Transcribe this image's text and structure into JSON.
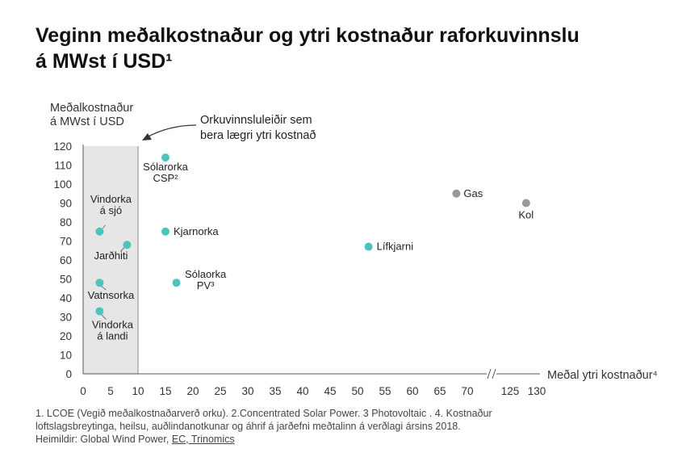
{
  "title": {
    "line1": "Veginn meðalkostnaður og ytri kostnaður raforkuvinnslu",
    "line2": "á MWst í USD¹"
  },
  "chart_data": {
    "type": "scatter",
    "ylabel": [
      "Meðalkostnaður",
      "á MWst í USD"
    ],
    "xlabel": "Meðal ytri kostnaður⁴",
    "ylim": [
      0,
      120
    ],
    "yticks": [
      0,
      10,
      20,
      30,
      40,
      50,
      60,
      70,
      80,
      90,
      100,
      110,
      120
    ],
    "xticks": [
      "0",
      "5",
      "10",
      "15",
      "20",
      "25",
      "30",
      "35",
      "40",
      "45",
      "50",
      "55",
      "60",
      "65",
      "70",
      "125",
      "130"
    ],
    "x_axis_break": "70–125",
    "grid": false,
    "shaded_region": {
      "x": [
        0,
        10
      ],
      "annotation": [
        "Orkuvinnsluleiðir sem",
        "bera lægri ytri kostnað"
      ]
    },
    "colors": {
      "teal": "#4dc3bd",
      "gray": "#999999",
      "shade": "#e6e6e6"
    },
    "points": [
      {
        "label": [
          "Sólarorka",
          "CSP²"
        ],
        "x": 15,
        "y": 114,
        "color": "teal"
      },
      {
        "label": [
          "Vindorka",
          "á sjó"
        ],
        "x": 3,
        "y": 75,
        "color": "teal"
      },
      {
        "label": [
          "Jarðhiti"
        ],
        "x": 8,
        "y": 68,
        "color": "teal"
      },
      {
        "label": [
          "Kjarnorka"
        ],
        "x": 15,
        "y": 75,
        "color": "teal"
      },
      {
        "label": [
          "Sólaorka",
          "PV³"
        ],
        "x": 17,
        "y": 48,
        "color": "teal"
      },
      {
        "label": [
          "Vatnsorka"
        ],
        "x": 3,
        "y": 48,
        "color": "teal"
      },
      {
        "label": [
          "Vindorka",
          "á landi"
        ],
        "x": 3,
        "y": 33,
        "color": "teal"
      },
      {
        "label": [
          "Lífkjarni"
        ],
        "x": 52,
        "y": 67,
        "color": "teal"
      },
      {
        "label": [
          "Gas"
        ],
        "x": 68,
        "y": 95,
        "color": "gray"
      },
      {
        "label": [
          "Kol"
        ],
        "x": 128,
        "y": 90,
        "color": "gray"
      }
    ]
  },
  "footnote": {
    "line1": "1. LCOE (Vegið meðalkostnaðarverð orku). 2.Concentrated Solar Power. 3 Photovoltaic . 4. Kostnaður",
    "line2": "loftslagsbreytinga, heilsu, auðlindanotkunar og áhrif á jarðefni meðtalinn á verðlagi ársins 2018.",
    "line3_prefix": "Heimildir: Global Wind Power, ",
    "line3_link": "EC, Trinomics"
  }
}
